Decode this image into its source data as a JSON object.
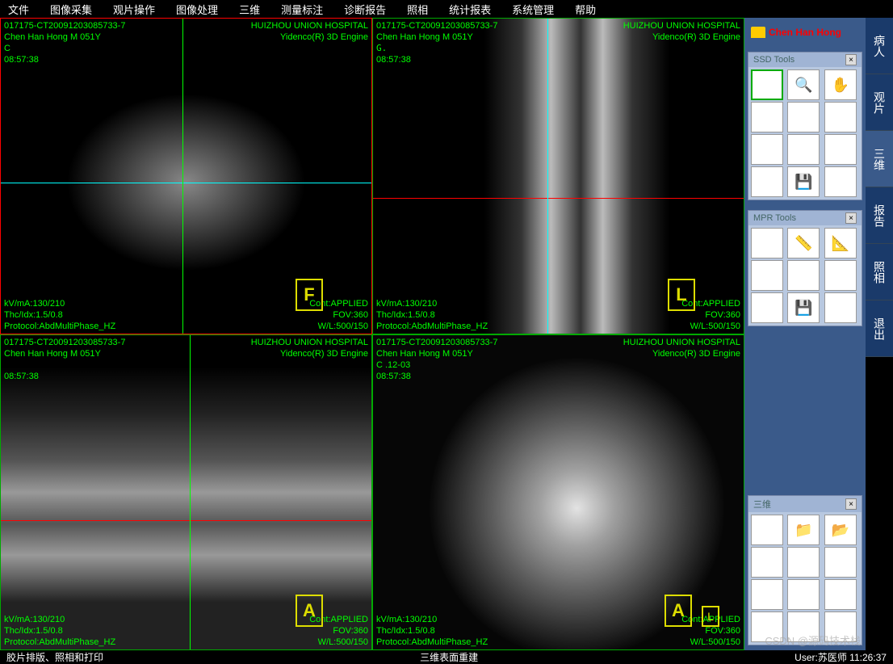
{
  "menu": [
    "文件",
    "图像采集",
    "观片操作",
    "图像处理",
    "三维",
    "测量标注",
    "诊断报告",
    "照相",
    "统计报表",
    "系统管理",
    "帮助"
  ],
  "patient": {
    "name": "Chen Han Hong"
  },
  "viewports": {
    "common": {
      "line1": "017175-CT20091203085733-7",
      "line2": "Chen Han Hong M 051Y",
      "line3": "C",
      "time": "08:57:38",
      "hospital": "HUIZHOU UNION HOSPITAL",
      "engine": "Yidenco(R) 3D Engine",
      "kvma": "kV/mA:130/210",
      "thc": "Thc/Idx:1.5/0.8",
      "protocol": "Protocol:AbdMultiPhase_HZ",
      "cont": "Cont:APPLIED",
      "fov": "FOV:360",
      "wl": "W/L:500/150"
    },
    "v3_line3": "C  .12-03",
    "orient": {
      "v0": "F",
      "v1": "L",
      "v2": "A",
      "v3a": "A",
      "v3b": "L"
    },
    "crosshair": {
      "v0_hx": 52,
      "v0_vy": 49,
      "v1_hx": 57,
      "v1_vy": 47,
      "v2_hx": 59,
      "v2_vy": 51
    }
  },
  "side_tabs": [
    "病人",
    "观片",
    "三维",
    "报告",
    "照相",
    "退出"
  ],
  "active_tab": 2,
  "toolboxes": {
    "ssd": {
      "title": "SSD Tools",
      "icons": [
        "rect",
        "zoom",
        "hand",
        "sun",
        "pencil",
        "lines",
        "lasso",
        "scissors",
        "undo",
        "link",
        "save",
        ""
      ]
    },
    "mpr": {
      "title": "MPR Tools",
      "icons": [
        "grid",
        "ruler1",
        "ruler2",
        "ruler3",
        "circle",
        "oval",
        "dotcircle",
        "save",
        ""
      ]
    },
    "san": {
      "title": "三维",
      "icons": [
        "stack",
        "folder",
        "folder2",
        "crop",
        "cube",
        "mesh",
        "sq",
        "grid2",
        "head",
        "wave",
        "",
        ""
      ]
    }
  },
  "statusbar": {
    "left": "胶片排版、照相和打印",
    "center": "三维表面重建",
    "right": "User:苏医师   11:26:37"
  },
  "watermark": "CSDN @源码技术栈",
  "colors": {
    "overlay": "#00ff00",
    "viewborder": "#00aa00",
    "activeborder": "#ff0000",
    "panel": "#3a5a8a",
    "toolbg": "#b8c8e0"
  }
}
